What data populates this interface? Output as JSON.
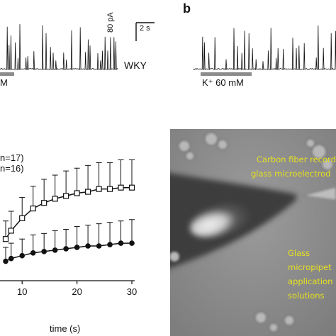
{
  "panel_b_label": "b",
  "scale_bar": {
    "current": "80 pA",
    "time": "2 s"
  },
  "trace_left": {
    "strain_label": "WKY",
    "stim_label_fragment": "M"
  },
  "trace_right": {
    "stim_label": "K⁺ 60 mM"
  },
  "graph": {
    "legend_top": "n=17)",
    "legend_bottom": "n=16)",
    "xlabel": "time (s)",
    "x_ticks": [
      "10",
      "20",
      "30"
    ]
  },
  "photo_labels": {
    "carbon_fiber": [
      "Carbon fiber record",
      "glass microelectrod"
    ],
    "micropipette": [
      "Glass",
      "micropipet",
      "application",
      "solutions"
    ]
  },
  "colors": {
    "trace": "#111111",
    "stim_bar": "#8c8c8c",
    "photo_text": "#e6e020"
  },
  "chart_data": {
    "type": "line",
    "xlabel": "time (s)",
    "xlim": [
      7,
      30
    ],
    "series": [
      {
        "marker": "open-square",
        "x": [
          7,
          8,
          10,
          12,
          14,
          16,
          18,
          20,
          22,
          24,
          26,
          28,
          30
        ],
        "y": [
          0.3,
          0.36,
          0.45,
          0.52,
          0.56,
          0.59,
          0.61,
          0.63,
          0.64,
          0.66,
          0.66,
          0.67,
          0.67
        ],
        "error": [
          0.13,
          0.14,
          0.15,
          0.16,
          0.17,
          0.17,
          0.18,
          0.18,
          0.19,
          0.19,
          0.19,
          0.2,
          0.2
        ]
      },
      {
        "marker": "filled-circle",
        "x": [
          7,
          8,
          10,
          12,
          14,
          16,
          18,
          20,
          22,
          24,
          26,
          28,
          30
        ],
        "y": [
          0.14,
          0.16,
          0.18,
          0.2,
          0.21,
          0.22,
          0.23,
          0.24,
          0.25,
          0.25,
          0.26,
          0.27,
          0.27
        ],
        "error": [
          0.1,
          0.11,
          0.12,
          0.13,
          0.13,
          0.14,
          0.14,
          0.15,
          0.15,
          0.16,
          0.16,
          0.16,
          0.17
        ]
      }
    ]
  }
}
